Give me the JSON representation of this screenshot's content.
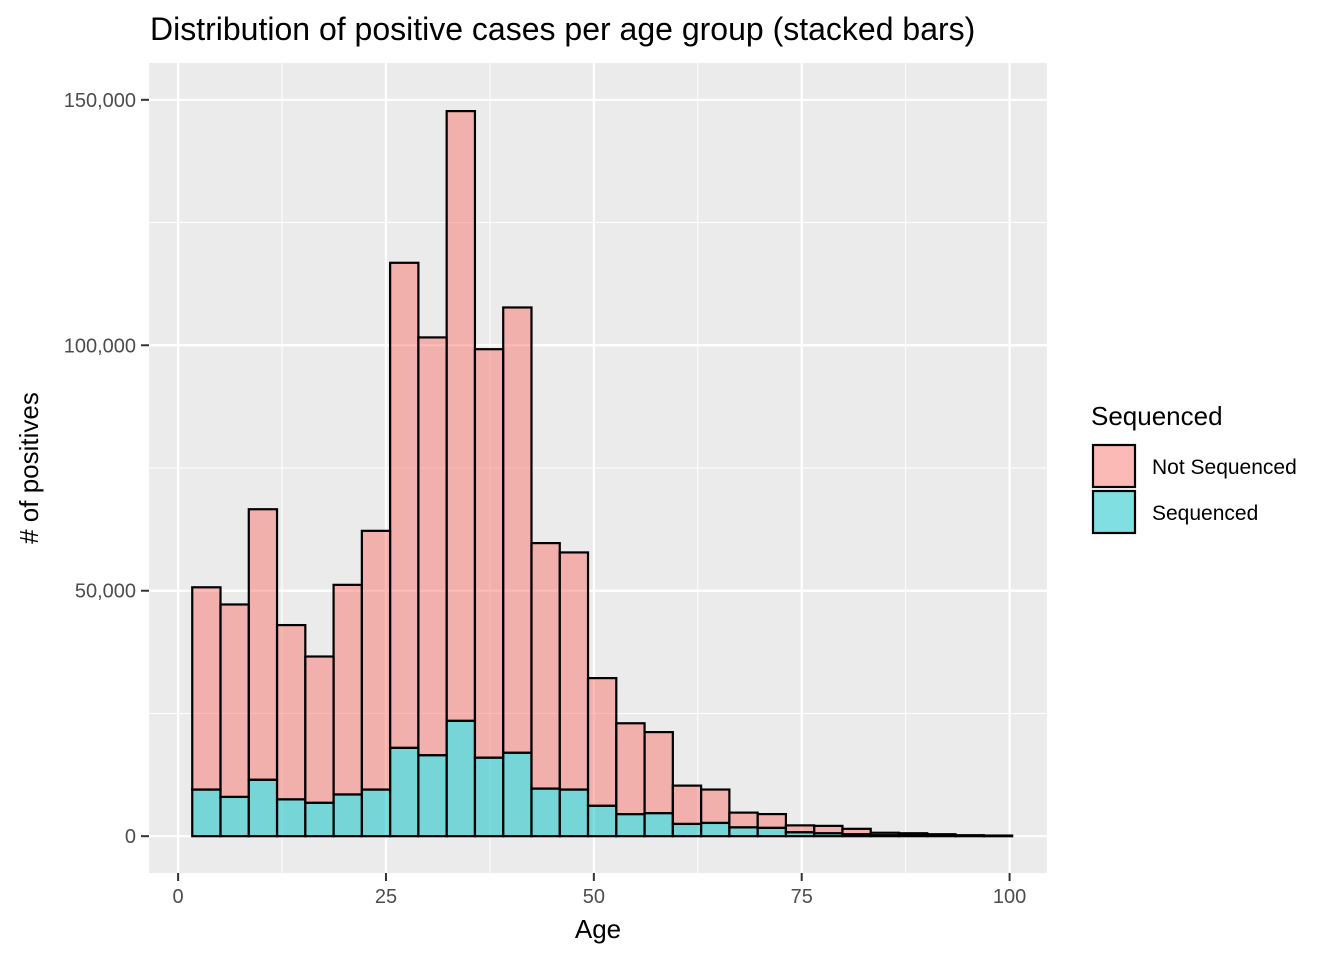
{
  "chart_data": {
    "type": "bar",
    "stacked": true,
    "title": "Distribution of positive cases per age group (stacked bars)",
    "xlabel": "Age",
    "ylabel": "# of positives",
    "xlim": [
      -3.5,
      104.5
    ],
    "ylim": [
      -7500,
      157500
    ],
    "x_ticks": [
      0,
      25,
      50,
      75,
      100
    ],
    "x_tick_labels": [
      "0",
      "25",
      "50",
      "75",
      "100"
    ],
    "y_ticks": [
      0,
      50000,
      100000,
      150000
    ],
    "y_tick_labels": [
      "0",
      "50,000",
      "100,000",
      "150,000"
    ],
    "grid": true,
    "bin_width": 3.4,
    "x": [
      3.4,
      6.8,
      10.2,
      13.6,
      17.0,
      20.4,
      23.8,
      27.2,
      30.6,
      34.0,
      37.4,
      40.8,
      44.2,
      47.6,
      51.0,
      54.4,
      57.8,
      61.2,
      64.6,
      68.0,
      71.4,
      74.8,
      78.2,
      81.6,
      85.0,
      88.4,
      91.8,
      95.2,
      98.6
    ],
    "series": [
      {
        "name": "Sequenced",
        "color": "#00BFC4",
        "values": [
          9500,
          8000,
          11500,
          7500,
          6800,
          8500,
          9500,
          18000,
          16500,
          23500,
          16000,
          17000,
          9700,
          9500,
          6200,
          4500,
          4700,
          2500,
          2700,
          1800,
          1700,
          800,
          600,
          400,
          200,
          150,
          100,
          50,
          30
        ]
      },
      {
        "name": "Not Sequenced",
        "color": "#F8766D",
        "values": [
          41200,
          39200,
          55100,
          35500,
          29800,
          42700,
          52700,
          98800,
          85100,
          124200,
          83200,
          90700,
          50000,
          48300,
          26000,
          18500,
          16500,
          7800,
          6800,
          3000,
          2800,
          1400,
          1500,
          1100,
          500,
          450,
          300,
          150,
          100
        ]
      }
    ],
    "legend": {
      "title": "Sequenced",
      "placement": "right",
      "entries": [
        "Not Sequenced",
        "Sequenced"
      ]
    }
  }
}
